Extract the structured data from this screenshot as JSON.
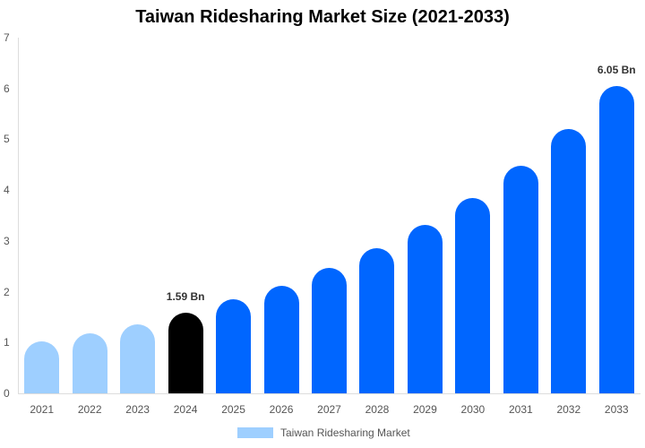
{
  "chart_data": {
    "type": "bar",
    "title": "Taiwan Ridesharing Market Size (2021-2033)",
    "xlabel": "",
    "ylabel": "",
    "ylim": [
      0,
      7
    ],
    "yticks": [
      "0",
      "1",
      "2",
      "3",
      "4",
      "5",
      "6",
      "7"
    ],
    "grid": false,
    "legend_position": "bottom",
    "categories": [
      "2021",
      "2022",
      "2023",
      "2024",
      "2025",
      "2026",
      "2027",
      "2028",
      "2029",
      "2030",
      "2031",
      "2032",
      "2033"
    ],
    "series": [
      {
        "name": "Taiwan Ridesharing Market",
        "values": [
          1.02,
          1.18,
          1.36,
          1.59,
          1.85,
          2.12,
          2.47,
          2.86,
          3.32,
          3.84,
          4.48,
          5.2,
          6.05
        ]
      }
    ],
    "bar_colors": [
      "#9ecfff",
      "#9ecfff",
      "#9ecfff",
      "#000000",
      "#0066ff",
      "#0066ff",
      "#0066ff",
      "#0066ff",
      "#0066ff",
      "#0066ff",
      "#0066ff",
      "#0066ff",
      "#0066ff"
    ],
    "annotations": [
      {
        "category": "2024",
        "text": "1.59 Bn"
      },
      {
        "category": "2033",
        "text": "6.05 Bn"
      }
    ]
  },
  "legend": {
    "label": "Taiwan Ridesharing Market",
    "color": "#9ecfff"
  }
}
